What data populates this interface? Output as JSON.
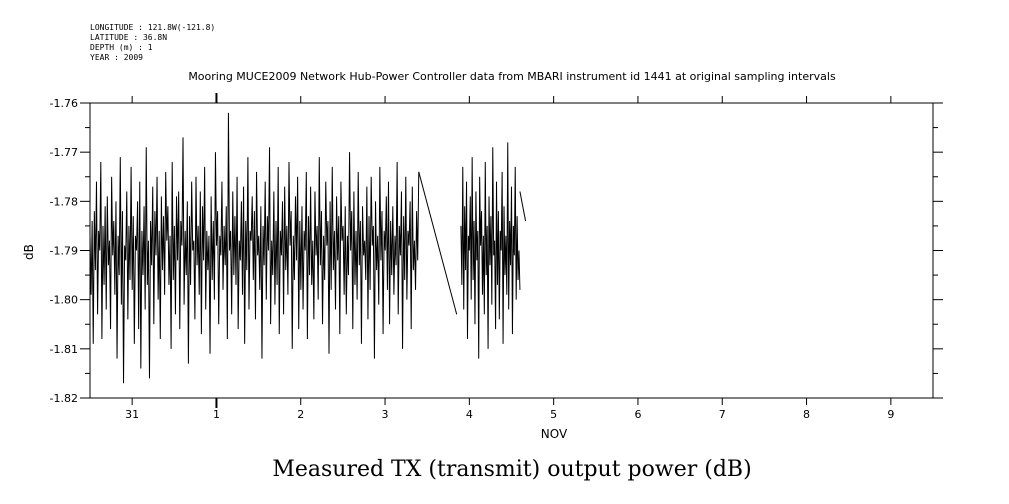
{
  "meta": {
    "longitude": "LONGITUDE : 121.8W(-121.8)",
    "latitude": "LATITUDE : 36.8N",
    "depth": "DEPTH (m) : 1",
    "year": "YEAR : 2009"
  },
  "caption": "Measured TX (transmit) output power (dB)",
  "chart_data": {
    "type": "line",
    "title": "Mooring MUCE2009 Network Hub-Power Controller data from MBARI instrument id 1441 at original sampling intervals",
    "ylabel": "dB",
    "xlabel": "NOV",
    "ylim": [
      -1.82,
      -1.76
    ],
    "xlim": [
      "2009-10-30T12:00",
      "2009-11-09T12:00"
    ],
    "y_ticks": [
      "-1.76",
      "-1.77",
      "-1.78",
      "-1.79",
      "-1.80",
      "-1.81",
      "-1.82"
    ],
    "x_tick_labels": [
      "31",
      "1",
      "2",
      "3",
      "4",
      "5",
      "6",
      "7",
      "8",
      "9"
    ],
    "series": [
      {
        "segments": [
          {
            "x_start": "2009-10-30T12:00",
            "x_end": "2009-11-03T09:36",
            "values": [
              -1.787,
              -1.799,
              -1.784,
              -1.809,
              -1.782,
              -1.794,
              -1.776,
              -1.803,
              -1.786,
              -1.79,
              -1.772,
              -1.808,
              -1.785,
              -1.797,
              -1.781,
              -1.802,
              -1.779,
              -1.793,
              -1.788,
              -1.806,
              -1.775,
              -1.791,
              -1.784,
              -1.799,
              -1.78,
              -1.812,
              -1.787,
              -1.795,
              -1.771,
              -1.801,
              -1.782,
              -1.817,
              -1.789,
              -1.792,
              -1.778,
              -1.804,
              -1.785,
              -1.796,
              -1.773,
              -1.798,
              -1.783,
              -1.809,
              -1.787,
              -1.79,
              -1.78,
              -1.806,
              -1.776,
              -1.814,
              -1.786,
              -1.795,
              -1.781,
              -1.802,
              -1.769,
              -1.797,
              -1.788,
              -1.816,
              -1.784,
              -1.793,
              -1.777,
              -1.805,
              -1.782,
              -1.791,
              -1.775,
              -1.8,
              -1.786,
              -1.808,
              -1.779,
              -1.794,
              -1.783,
              -1.799,
              -1.774,
              -1.788,
              -1.781,
              -1.797,
              -1.787,
              -1.81,
              -1.772,
              -1.796,
              -1.785,
              -1.803,
              -1.779,
              -1.792,
              -1.778,
              -1.806,
              -1.784,
              -1.789,
              -1.767,
              -1.801,
              -1.786,
              -1.795,
              -1.78,
              -1.813,
              -1.783,
              -1.797,
              -1.776,
              -1.79,
              -1.788,
              -1.804,
              -1.775,
              -1.793,
              -1.785,
              -1.799,
              -1.778,
              -1.807,
              -1.781,
              -1.792,
              -1.773,
              -1.802,
              -1.786,
              -1.794,
              -1.787,
              -1.811,
              -1.779,
              -1.796,
              -1.784,
              -1.8,
              -1.77,
              -1.789,
              -1.782,
              -1.805,
              -1.787,
              -1.791,
              -1.776,
              -1.798,
              -1.785,
              -1.793,
              -1.781,
              -1.808,
              -1.762,
              -1.79,
              -1.786,
              -1.803,
              -1.778,
              -1.795,
              -1.783,
              -1.797,
              -1.775,
              -1.806,
              -1.788,
              -1.792,
              -1.78,
              -1.799,
              -1.777,
              -1.809,
              -1.784,
              -1.794,
              -1.771,
              -1.802,
              -1.786,
              -1.788,
              -1.779,
              -1.796,
              -1.782,
              -1.804,
              -1.774,
              -1.791,
              -1.787,
              -1.798,
              -1.781,
              -1.812,
              -1.785,
              -1.793,
              -1.776,
              -1.8,
              -1.783,
              -1.79,
              -1.769,
              -1.805,
              -1.788,
              -1.795,
              -1.778,
              -1.801,
              -1.784,
              -1.797,
              -1.773,
              -1.807,
              -1.786,
              -1.791,
              -1.78,
              -1.803,
              -1.777,
              -1.794,
              -1.785,
              -1.799,
              -1.772,
              -1.789,
              -1.782,
              -1.81,
              -1.787,
              -1.796,
              -1.779,
              -1.792,
              -1.775,
              -1.806,
              -1.784,
              -1.798,
              -1.781,
              -1.802,
              -1.786,
              -1.79,
              -1.774,
              -1.808,
              -1.783,
              -1.795,
              -1.777,
              -1.797,
              -1.788,
              -1.804,
              -1.778,
              -1.791,
              -1.785,
              -1.8,
              -1.771,
              -1.793,
              -1.782,
              -1.805,
              -1.787,
              -1.796,
              -1.776,
              -1.789,
              -1.784,
              -1.811,
              -1.78,
              -1.798,
              -1.773,
              -1.794,
              -1.786,
              -1.802,
              -1.779,
              -1.792,
              -1.783,
              -1.807,
              -1.776,
              -1.788,
              -1.785,
              -1.799,
              -1.781,
              -1.803,
              -1.787,
              -1.795,
              -1.77,
              -1.79,
              -1.782,
              -1.806,
              -1.778,
              -1.797,
              -1.786,
              -1.8,
              -1.774,
              -1.793,
              -1.784,
              -1.809,
              -1.781,
              -1.791,
              -1.788,
              -1.796,
              -1.777,
              -1.804,
              -1.783,
              -1.798,
              -1.775,
              -1.789,
              -1.785,
              -1.812,
              -1.78,
              -1.794,
              -1.787,
              -1.801,
              -1.773,
              -1.792,
              -1.782,
              -1.807,
              -1.786,
              -1.79,
              -1.779,
              -1.798,
              -1.776,
              -1.805,
              -1.784,
              -1.795,
              -1.781,
              -1.799,
              -1.787,
              -1.793,
              -1.772,
              -1.803,
              -1.785,
              -1.791,
              -1.778,
              -1.81,
              -1.783,
              -1.796,
              -1.775,
              -1.8,
              -1.786,
              -1.789,
              -1.78,
              -1.806,
              -1.777,
              -1.794,
              -1.788,
              -1.798,
              -1.782,
              -1.792,
              -1.774
            ]
          },
          {
            "x_start": "2009-11-03T09:36",
            "x_end": "2009-11-03T20:24",
            "values": [
              -1.774,
              -1.803
            ]
          },
          {
            "x_start": "2009-11-03T21:36",
            "x_end": "2009-11-04T14:24",
            "values": [
              -1.785,
              -1.797,
              -1.773,
              -1.802,
              -1.781,
              -1.794,
              -1.776,
              -1.808,
              -1.787,
              -1.79,
              -1.779,
              -1.8,
              -1.771,
              -1.796,
              -1.784,
              -1.805,
              -1.778,
              -1.792,
              -1.786,
              -1.812,
              -1.775,
              -1.789,
              -1.782,
              -1.799,
              -1.787,
              -1.803,
              -1.772,
              -1.795,
              -1.785,
              -1.81,
              -1.779,
              -1.793,
              -1.783,
              -1.801,
              -1.769,
              -1.791,
              -1.788,
              -1.806,
              -1.776,
              -1.797,
              -1.782,
              -1.804,
              -1.786,
              -1.79,
              -1.774,
              -1.809,
              -1.781,
              -1.795,
              -1.787,
              -1.799,
              -1.768,
              -1.802,
              -1.784,
              -1.793,
              -1.777,
              -1.807,
              -1.785,
              -1.791,
              -1.773,
              -1.8,
              -1.783,
              -1.796,
              -1.79,
              -1.798
            ]
          },
          {
            "x_start": "2009-11-04T14:24",
            "x_end": "2009-11-04T16:00",
            "values": [
              -1.778,
              -1.784
            ]
          }
        ]
      }
    ]
  }
}
